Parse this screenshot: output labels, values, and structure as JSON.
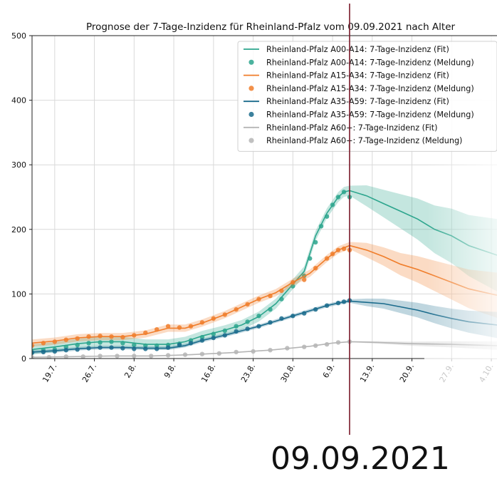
{
  "chart_data": {
    "type": "line",
    "title": "Prognose der 7-Tage-Inzidenz für Rheinland-Pfalz vom 09.09.2021 nach Alter",
    "xlabel": "",
    "ylabel": "",
    "ylim": [
      0,
      500
    ],
    "yticks": [
      0,
      100,
      200,
      300,
      400,
      500
    ],
    "xlim": [
      "2021-07-15",
      "2021-10-05"
    ],
    "xticks": [
      {
        "date": "2021-07-19",
        "label": "19.7."
      },
      {
        "date": "2021-07-26",
        "label": "26.7."
      },
      {
        "date": "2021-08-02",
        "label": "2.8."
      },
      {
        "date": "2021-08-09",
        "label": "9.8."
      },
      {
        "date": "2021-08-16",
        "label": "16.8."
      },
      {
        "date": "2021-08-23",
        "label": "23.8."
      },
      {
        "date": "2021-08-30",
        "label": "30.8."
      },
      {
        "date": "2021-09-06",
        "label": "6.9."
      },
      {
        "date": "2021-09-13",
        "label": "13.9."
      },
      {
        "date": "2021-09-20",
        "label": "20.9."
      },
      {
        "date": "2021-09-27",
        "label": "27.9."
      },
      {
        "date": "2021-10-04",
        "label": "4.10."
      }
    ],
    "grid": true,
    "legend_position": "top-right",
    "forecast_start": "2021-09-09",
    "vline_date": "2021-09-09",
    "vline_label": "09.09.2021",
    "legend_labels": [
      "Rheinland-Pfalz A00-A14: 7-Tage-Inzidenz (Fit)",
      "Rheinland-Pfalz A00-A14: 7-Tage-Inzidenz (Meldung)",
      "Rheinland-Pfalz A15-A34: 7-Tage-Inzidenz (Fit)",
      "Rheinland-Pfalz A15-A34: 7-Tage-Inzidenz (Meldung)",
      "Rheinland-Pfalz A35-A59: 7-Tage-Inzidenz (Fit)",
      "Rheinland-Pfalz A35-A59: 7-Tage-Inzidenz (Meldung)",
      "Rheinland-Pfalz A60+: 7-Tage-Inzidenz (Fit)",
      "Rheinland-Pfalz A60+: 7-Tage-Inzidenz (Meldung)"
    ],
    "series": [
      {
        "name": "Rheinland-Pfalz A00-A14",
        "color": "#2ca58d",
        "fit": [
          [
            "2021-07-15",
            14
          ],
          [
            "2021-07-19",
            18
          ],
          [
            "2021-07-23",
            23
          ],
          [
            "2021-07-27",
            26
          ],
          [
            "2021-07-31",
            26
          ],
          [
            "2021-08-04",
            22
          ],
          [
            "2021-08-08",
            22
          ],
          [
            "2021-08-11",
            26
          ],
          [
            "2021-08-14",
            35
          ],
          [
            "2021-08-18",
            44
          ],
          [
            "2021-08-21",
            52
          ],
          [
            "2021-08-24",
            65
          ],
          [
            "2021-08-27",
            85
          ],
          [
            "2021-08-30",
            115
          ],
          [
            "2021-09-01",
            135
          ],
          [
            "2021-09-03",
            190
          ],
          [
            "2021-09-05",
            225
          ],
          [
            "2021-09-07",
            250
          ],
          [
            "2021-09-08",
            258
          ],
          [
            "2021-09-09",
            260
          ],
          [
            "2021-09-12",
            252
          ],
          [
            "2021-09-15",
            240
          ],
          [
            "2021-09-18",
            228
          ],
          [
            "2021-09-21",
            216
          ],
          [
            "2021-09-24",
            200
          ],
          [
            "2021-09-27",
            190
          ],
          [
            "2021-09-30",
            175
          ],
          [
            "2021-10-05",
            160
          ]
        ],
        "band": [
          22,
          50
        ],
        "points": [
          [
            "2021-07-15",
            10
          ],
          [
            "2021-07-17",
            13
          ],
          [
            "2021-07-19",
            14
          ],
          [
            "2021-07-21",
            18
          ],
          [
            "2021-07-23",
            21
          ],
          [
            "2021-07-25",
            24
          ],
          [
            "2021-07-27",
            25
          ],
          [
            "2021-07-29",
            26
          ],
          [
            "2021-07-31",
            24
          ],
          [
            "2021-08-02",
            21
          ],
          [
            "2021-08-04",
            20
          ],
          [
            "2021-08-06",
            20
          ],
          [
            "2021-08-08",
            21
          ],
          [
            "2021-08-10",
            23
          ],
          [
            "2021-08-12",
            28
          ],
          [
            "2021-08-14",
            33
          ],
          [
            "2021-08-16",
            38
          ],
          [
            "2021-08-18",
            43
          ],
          [
            "2021-08-20",
            50
          ],
          [
            "2021-08-22",
            57
          ],
          [
            "2021-08-24",
            66
          ],
          [
            "2021-08-26",
            76
          ],
          [
            "2021-08-28",
            92
          ],
          [
            "2021-08-30",
            112
          ],
          [
            "2021-09-01",
            128
          ],
          [
            "2021-09-02",
            155
          ],
          [
            "2021-09-03",
            180
          ],
          [
            "2021-09-04",
            205
          ],
          [
            "2021-09-05",
            220
          ],
          [
            "2021-09-06",
            238
          ],
          [
            "2021-09-07",
            250
          ],
          [
            "2021-09-08",
            258
          ],
          [
            "2021-09-09",
            250
          ]
        ]
      },
      {
        "name": "Rheinland-Pfalz A15-A34",
        "color": "#f07d2a",
        "fit": [
          [
            "2021-07-15",
            24
          ],
          [
            "2021-07-19",
            27
          ],
          [
            "2021-07-23",
            32
          ],
          [
            "2021-07-27",
            34
          ],
          [
            "2021-07-31",
            34
          ],
          [
            "2021-08-04",
            38
          ],
          [
            "2021-08-08",
            47
          ],
          [
            "2021-08-11",
            47
          ],
          [
            "2021-08-14",
            55
          ],
          [
            "2021-08-18",
            68
          ],
          [
            "2021-08-21",
            80
          ],
          [
            "2021-08-24",
            92
          ],
          [
            "2021-08-27",
            102
          ],
          [
            "2021-08-30",
            118
          ],
          [
            "2021-09-02",
            132
          ],
          [
            "2021-09-05",
            155
          ],
          [
            "2021-09-07",
            168
          ],
          [
            "2021-09-09",
            175
          ],
          [
            "2021-09-12",
            168
          ],
          [
            "2021-09-15",
            158
          ],
          [
            "2021-09-18",
            146
          ],
          [
            "2021-09-21",
            138
          ],
          [
            "2021-09-24",
            128
          ],
          [
            "2021-09-27",
            118
          ],
          [
            "2021-09-30",
            108
          ],
          [
            "2021-10-05",
            98
          ]
        ],
        "band": [
          16,
          30
        ],
        "points": [
          [
            "2021-07-15",
            20
          ],
          [
            "2021-07-17",
            24
          ],
          [
            "2021-07-19",
            26
          ],
          [
            "2021-07-21",
            29
          ],
          [
            "2021-07-23",
            31
          ],
          [
            "2021-07-25",
            34
          ],
          [
            "2021-07-27",
            35
          ],
          [
            "2021-07-29",
            34
          ],
          [
            "2021-07-31",
            33
          ],
          [
            "2021-08-02",
            36
          ],
          [
            "2021-08-04",
            40
          ],
          [
            "2021-08-06",
            45
          ],
          [
            "2021-08-08",
            50
          ],
          [
            "2021-08-10",
            48
          ],
          [
            "2021-08-12",
            50
          ],
          [
            "2021-08-14",
            56
          ],
          [
            "2021-08-16",
            62
          ],
          [
            "2021-08-18",
            68
          ],
          [
            "2021-08-20",
            76
          ],
          [
            "2021-08-22",
            84
          ],
          [
            "2021-08-24",
            92
          ],
          [
            "2021-08-26",
            97
          ],
          [
            "2021-08-28",
            105
          ],
          [
            "2021-08-30",
            118
          ],
          [
            "2021-09-01",
            122
          ],
          [
            "2021-09-03",
            140
          ],
          [
            "2021-09-05",
            155
          ],
          [
            "2021-09-06",
            162
          ],
          [
            "2021-09-07",
            168
          ],
          [
            "2021-09-08",
            170
          ],
          [
            "2021-09-09",
            168
          ]
        ]
      },
      {
        "name": "Rheinland-Pfalz A35-A59",
        "color": "#1a6b8c",
        "fit": [
          [
            "2021-07-15",
            10
          ],
          [
            "2021-07-19",
            12
          ],
          [
            "2021-07-23",
            15
          ],
          [
            "2021-07-27",
            17
          ],
          [
            "2021-07-31",
            17
          ],
          [
            "2021-08-04",
            16
          ],
          [
            "2021-08-08",
            16
          ],
          [
            "2021-08-11",
            20
          ],
          [
            "2021-08-14",
            28
          ],
          [
            "2021-08-18",
            36
          ],
          [
            "2021-08-21",
            43
          ],
          [
            "2021-08-24",
            50
          ],
          [
            "2021-08-27",
            58
          ],
          [
            "2021-08-30",
            66
          ],
          [
            "2021-09-02",
            74
          ],
          [
            "2021-09-05",
            82
          ],
          [
            "2021-09-07",
            86
          ],
          [
            "2021-09-09",
            89
          ],
          [
            "2021-09-12",
            87
          ],
          [
            "2021-09-15",
            85
          ],
          [
            "2021-09-18",
            80
          ],
          [
            "2021-09-21",
            75
          ],
          [
            "2021-09-24",
            68
          ],
          [
            "2021-09-27",
            62
          ],
          [
            "2021-09-30",
            57
          ],
          [
            "2021-10-05",
            52
          ]
        ],
        "band": [
          8,
          18
        ],
        "points": [
          [
            "2021-07-15",
            9
          ],
          [
            "2021-07-17",
            10
          ],
          [
            "2021-07-19",
            11
          ],
          [
            "2021-07-21",
            13
          ],
          [
            "2021-07-23",
            14
          ],
          [
            "2021-07-25",
            16
          ],
          [
            "2021-07-27",
            17
          ],
          [
            "2021-07-29",
            17
          ],
          [
            "2021-07-31",
            16
          ],
          [
            "2021-08-02",
            15
          ],
          [
            "2021-08-04",
            15
          ],
          [
            "2021-08-06",
            15
          ],
          [
            "2021-08-08",
            17
          ],
          [
            "2021-08-10",
            21
          ],
          [
            "2021-08-12",
            24
          ],
          [
            "2021-08-14",
            28
          ],
          [
            "2021-08-16",
            32
          ],
          [
            "2021-08-18",
            36
          ],
          [
            "2021-08-20",
            42
          ],
          [
            "2021-08-22",
            46
          ],
          [
            "2021-08-24",
            50
          ],
          [
            "2021-08-26",
            56
          ],
          [
            "2021-08-28",
            62
          ],
          [
            "2021-08-30",
            66
          ],
          [
            "2021-09-01",
            70
          ],
          [
            "2021-09-03",
            76
          ],
          [
            "2021-09-05",
            82
          ],
          [
            "2021-09-07",
            86
          ],
          [
            "2021-09-08",
            88
          ],
          [
            "2021-09-09",
            90
          ]
        ]
      },
      {
        "name": "Rheinland-Pfalz A60+",
        "color": "#b5b5b5",
        "fit": [
          [
            "2021-07-15",
            2
          ],
          [
            "2021-07-22",
            3
          ],
          [
            "2021-07-29",
            4
          ],
          [
            "2021-08-05",
            4
          ],
          [
            "2021-08-12",
            6
          ],
          [
            "2021-08-19",
            9
          ],
          [
            "2021-08-26",
            13
          ],
          [
            "2021-09-02",
            19
          ],
          [
            "2021-09-06",
            24
          ],
          [
            "2021-09-09",
            26
          ],
          [
            "2021-09-14",
            25
          ],
          [
            "2021-09-20",
            23
          ],
          [
            "2021-09-27",
            22
          ],
          [
            "2021-10-05",
            20
          ]
        ],
        "band": [
          2,
          6
        ],
        "points": [
          [
            "2021-07-15",
            2
          ],
          [
            "2021-07-18",
            2
          ],
          [
            "2021-07-21",
            3
          ],
          [
            "2021-07-24",
            3
          ],
          [
            "2021-07-27",
            4
          ],
          [
            "2021-07-30",
            4
          ],
          [
            "2021-08-02",
            4
          ],
          [
            "2021-08-05",
            4
          ],
          [
            "2021-08-08",
            5
          ],
          [
            "2021-08-11",
            6
          ],
          [
            "2021-08-14",
            7
          ],
          [
            "2021-08-17",
            8
          ],
          [
            "2021-08-20",
            10
          ],
          [
            "2021-08-23",
            11
          ],
          [
            "2021-08-26",
            13
          ],
          [
            "2021-08-29",
            16
          ],
          [
            "2021-09-01",
            18
          ],
          [
            "2021-09-03",
            20
          ],
          [
            "2021-09-05",
            22
          ],
          [
            "2021-09-07",
            25
          ],
          [
            "2021-09-09",
            26
          ]
        ]
      }
    ]
  }
}
